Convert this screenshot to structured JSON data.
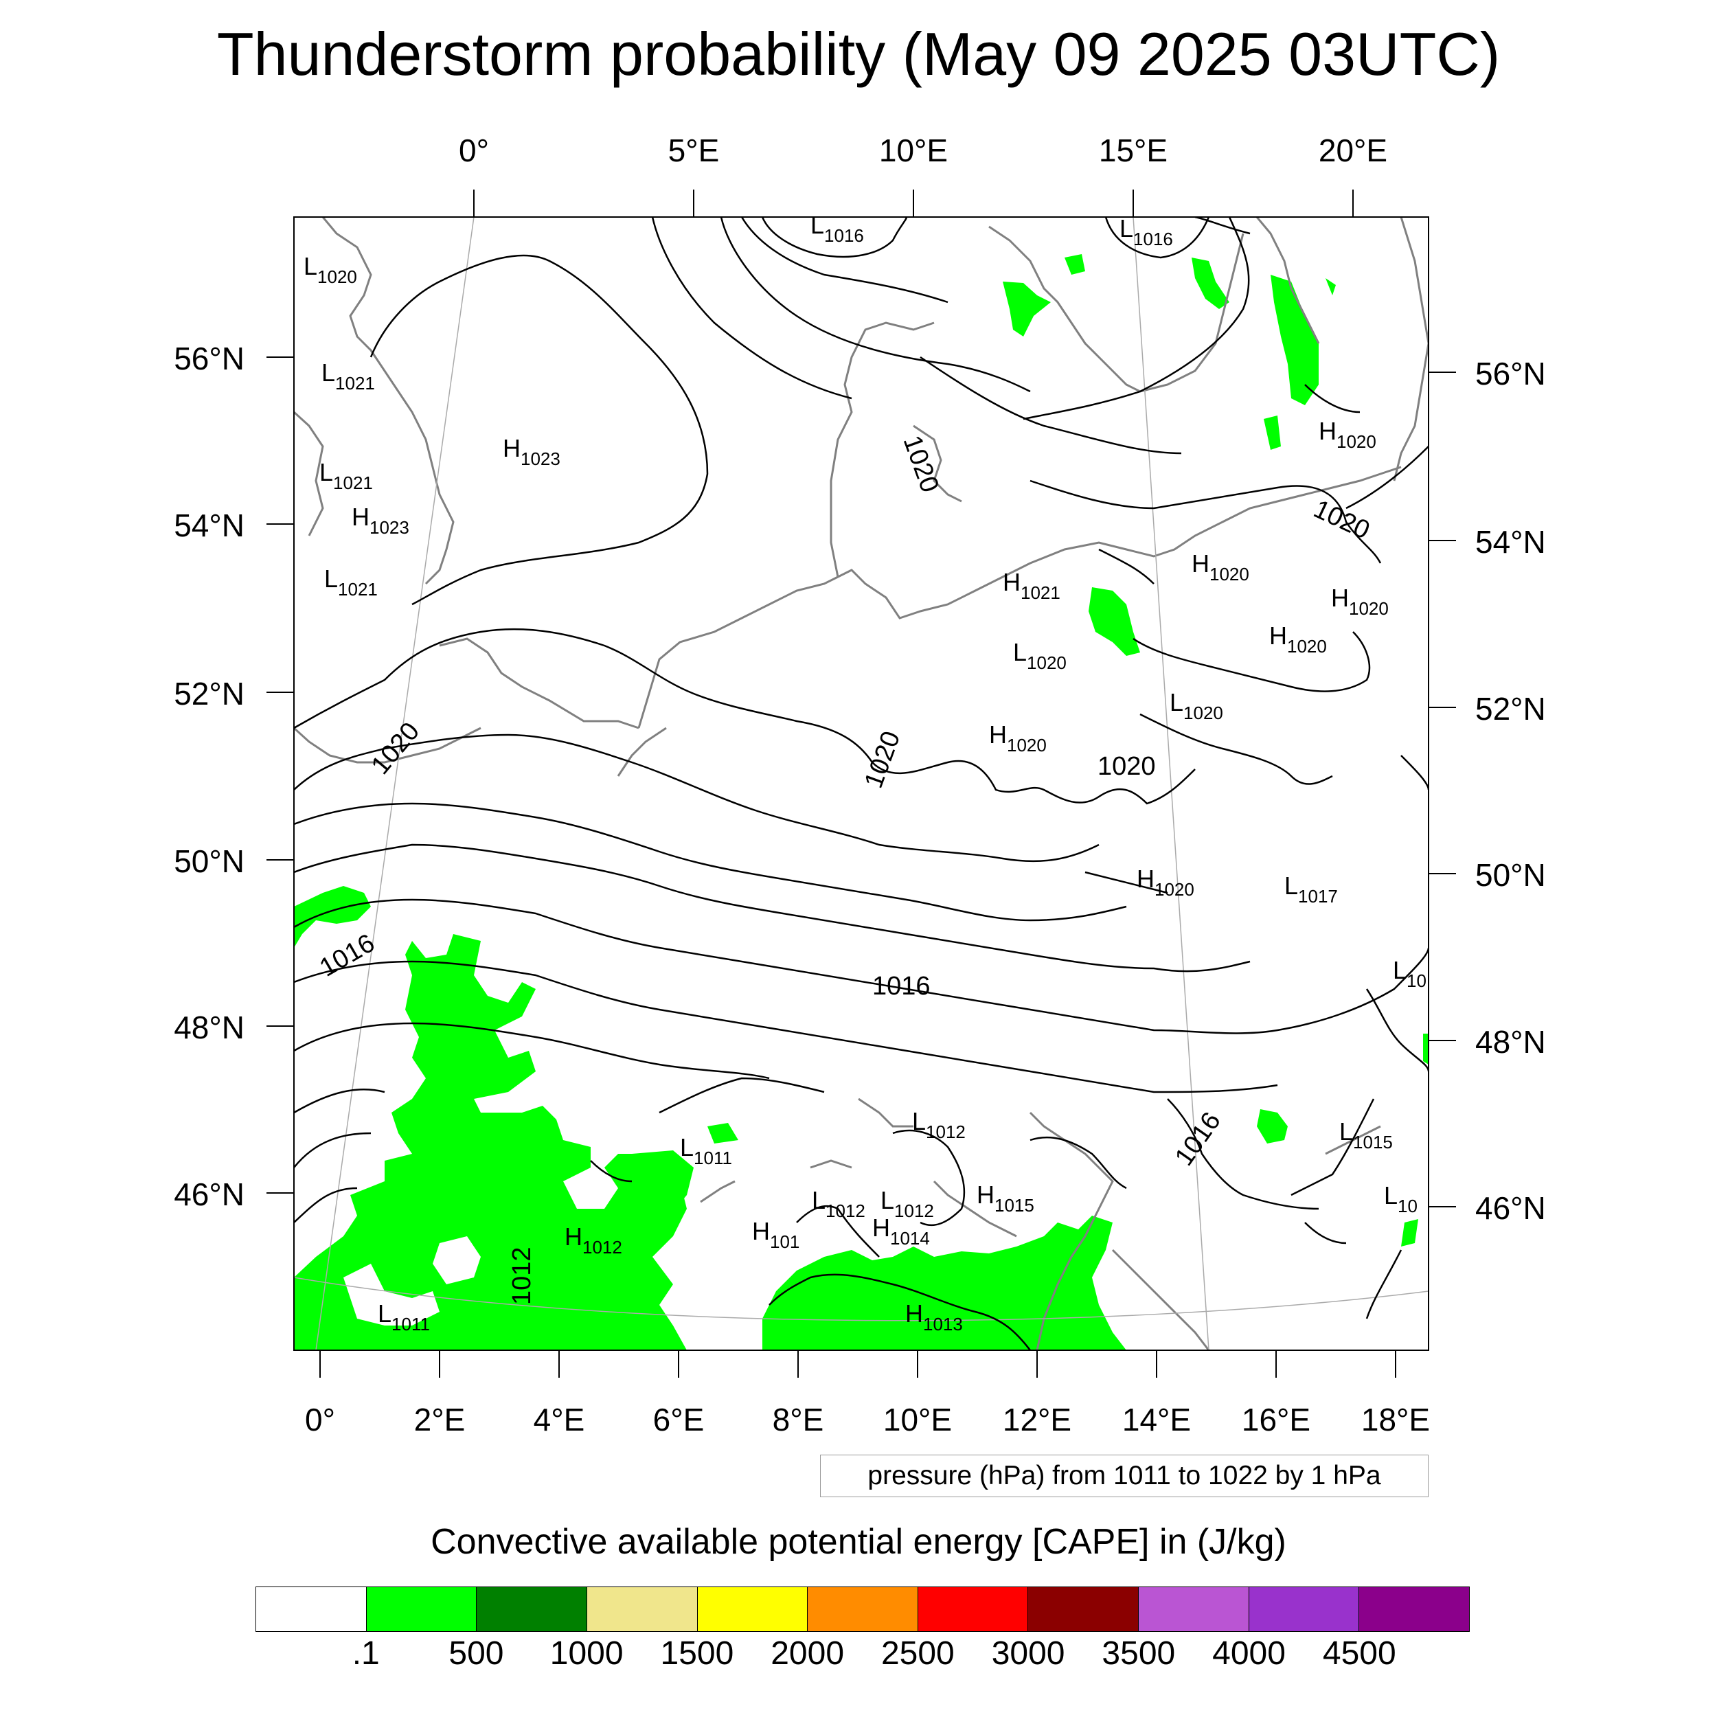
{
  "title": "Thunderstorm probability (May 09 2025 03UTC)",
  "map": {
    "top_lon_labels": [
      "0°",
      "5°E",
      "10°E",
      "15°E",
      "20°E"
    ],
    "bottom_lon_labels": [
      "0°",
      "2°E",
      "4°E",
      "6°E",
      "8°E",
      "10°E",
      "12°E",
      "14°E",
      "16°E",
      "18°E"
    ],
    "left_lat_labels": [
      "56°N",
      "54°N",
      "52°N",
      "50°N",
      "48°N",
      "46°N"
    ],
    "right_lat_labels": [
      "56°N",
      "54°N",
      "52°N",
      "50°N",
      "48°N",
      "46°N"
    ],
    "pressure_centers": [
      {
        "type": "L",
        "value": "1016"
      },
      {
        "type": "L",
        "value": "1016"
      },
      {
        "type": "L",
        "value": "1020"
      },
      {
        "type": "L",
        "value": "1021"
      },
      {
        "type": "H",
        "value": "1023"
      },
      {
        "type": "L",
        "value": "1021"
      },
      {
        "type": "H",
        "value": "1023"
      },
      {
        "type": "L",
        "value": "1021"
      },
      {
        "type": "H",
        "value": "1020"
      },
      {
        "type": "H",
        "value": "1021"
      },
      {
        "type": "H",
        "value": "1020"
      },
      {
        "type": "H",
        "value": "1020"
      },
      {
        "type": "L",
        "value": "1020"
      },
      {
        "type": "H",
        "value": "1020"
      },
      {
        "type": "L",
        "value": "1020"
      },
      {
        "type": "H",
        "value": "1020"
      },
      {
        "type": "H",
        "value": "1020"
      },
      {
        "type": "L",
        "value": "1017"
      },
      {
        "type": "L",
        "value": "10"
      },
      {
        "type": "L",
        "value": "1012"
      },
      {
        "type": "L",
        "value": "1015"
      },
      {
        "type": "L",
        "value": "1011"
      },
      {
        "type": "L",
        "value": "10"
      },
      {
        "type": "L",
        "value": "1012"
      },
      {
        "type": "L",
        "value": "1012"
      },
      {
        "type": "H",
        "value": "1015"
      },
      {
        "type": "H",
        "value": "1012"
      },
      {
        "type": "H",
        "value": "101"
      },
      {
        "type": "H",
        "value": "1014"
      },
      {
        "type": "L",
        "value": "1011"
      },
      {
        "type": "H",
        "value": "1013"
      }
    ],
    "contour_labels": [
      "1020",
      "1020",
      "1020",
      "1020",
      "1020",
      "1016",
      "1016",
      "1016",
      "1012"
    ]
  },
  "pressure_info": "pressure (hPa) from 1011 to 1022 by 1 hPa",
  "colorbar": {
    "title": "Convective available potential energy [CAPE] in (J/kg)",
    "colors": [
      "#ffffff",
      "#00ff00",
      "#008000",
      "#f0e68c",
      "#ffff00",
      "#ff8c00",
      "#ff0000",
      "#8b0000",
      "#ba55d3",
      "#9932cc",
      "#8b008b"
    ],
    "labels": [
      ".1",
      "500",
      "1000",
      "1500",
      "2000",
      "2500",
      "3000",
      "3500",
      "4000",
      "4500"
    ]
  }
}
